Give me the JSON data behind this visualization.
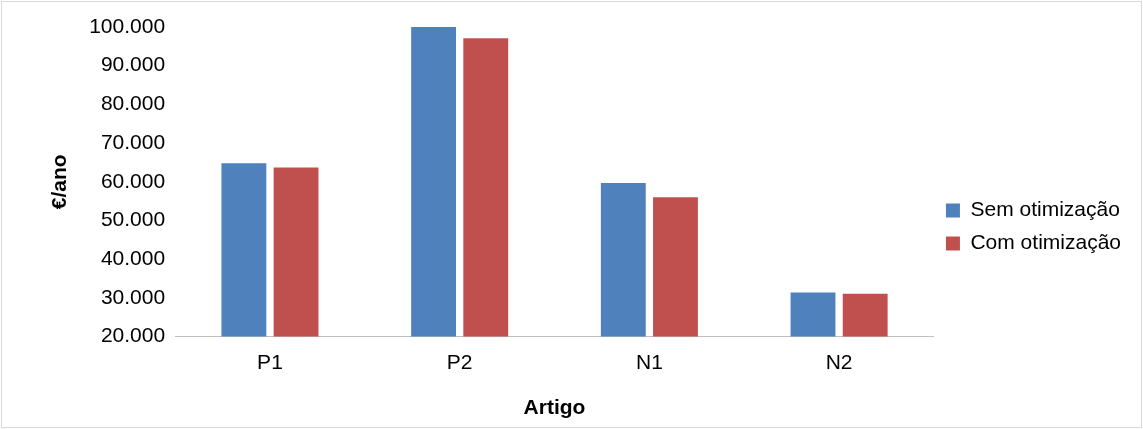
{
  "chart_data": {
    "type": "bar",
    "xlabel": "Artigo",
    "ylabel": "€/ano",
    "categories": [
      "P1",
      "P2",
      "N1",
      "N2"
    ],
    "series": [
      {
        "name": "Sem otimização",
        "color": "#4f81bd",
        "values": [
          64800,
          100000,
          59700,
          31400
        ]
      },
      {
        "name": "Com otimização",
        "color": "#c0504d",
        "values": [
          63700,
          97100,
          56000,
          31100
        ]
      }
    ],
    "ylim": [
      20000,
      100000
    ],
    "yticks": [
      {
        "value": 20000,
        "label": "20.000"
      },
      {
        "value": 30000,
        "label": "30.000"
      },
      {
        "value": 40000,
        "label": "40.000"
      },
      {
        "value": 50000,
        "label": "50.000"
      },
      {
        "value": 60000,
        "label": "60.000"
      },
      {
        "value": 70000,
        "label": "70.000"
      },
      {
        "value": 80000,
        "label": "80.000"
      },
      {
        "value": 90000,
        "label": "90.000"
      },
      {
        "value": 100000,
        "label": "100.000"
      }
    ],
    "grid": false,
    "legend": "right"
  }
}
